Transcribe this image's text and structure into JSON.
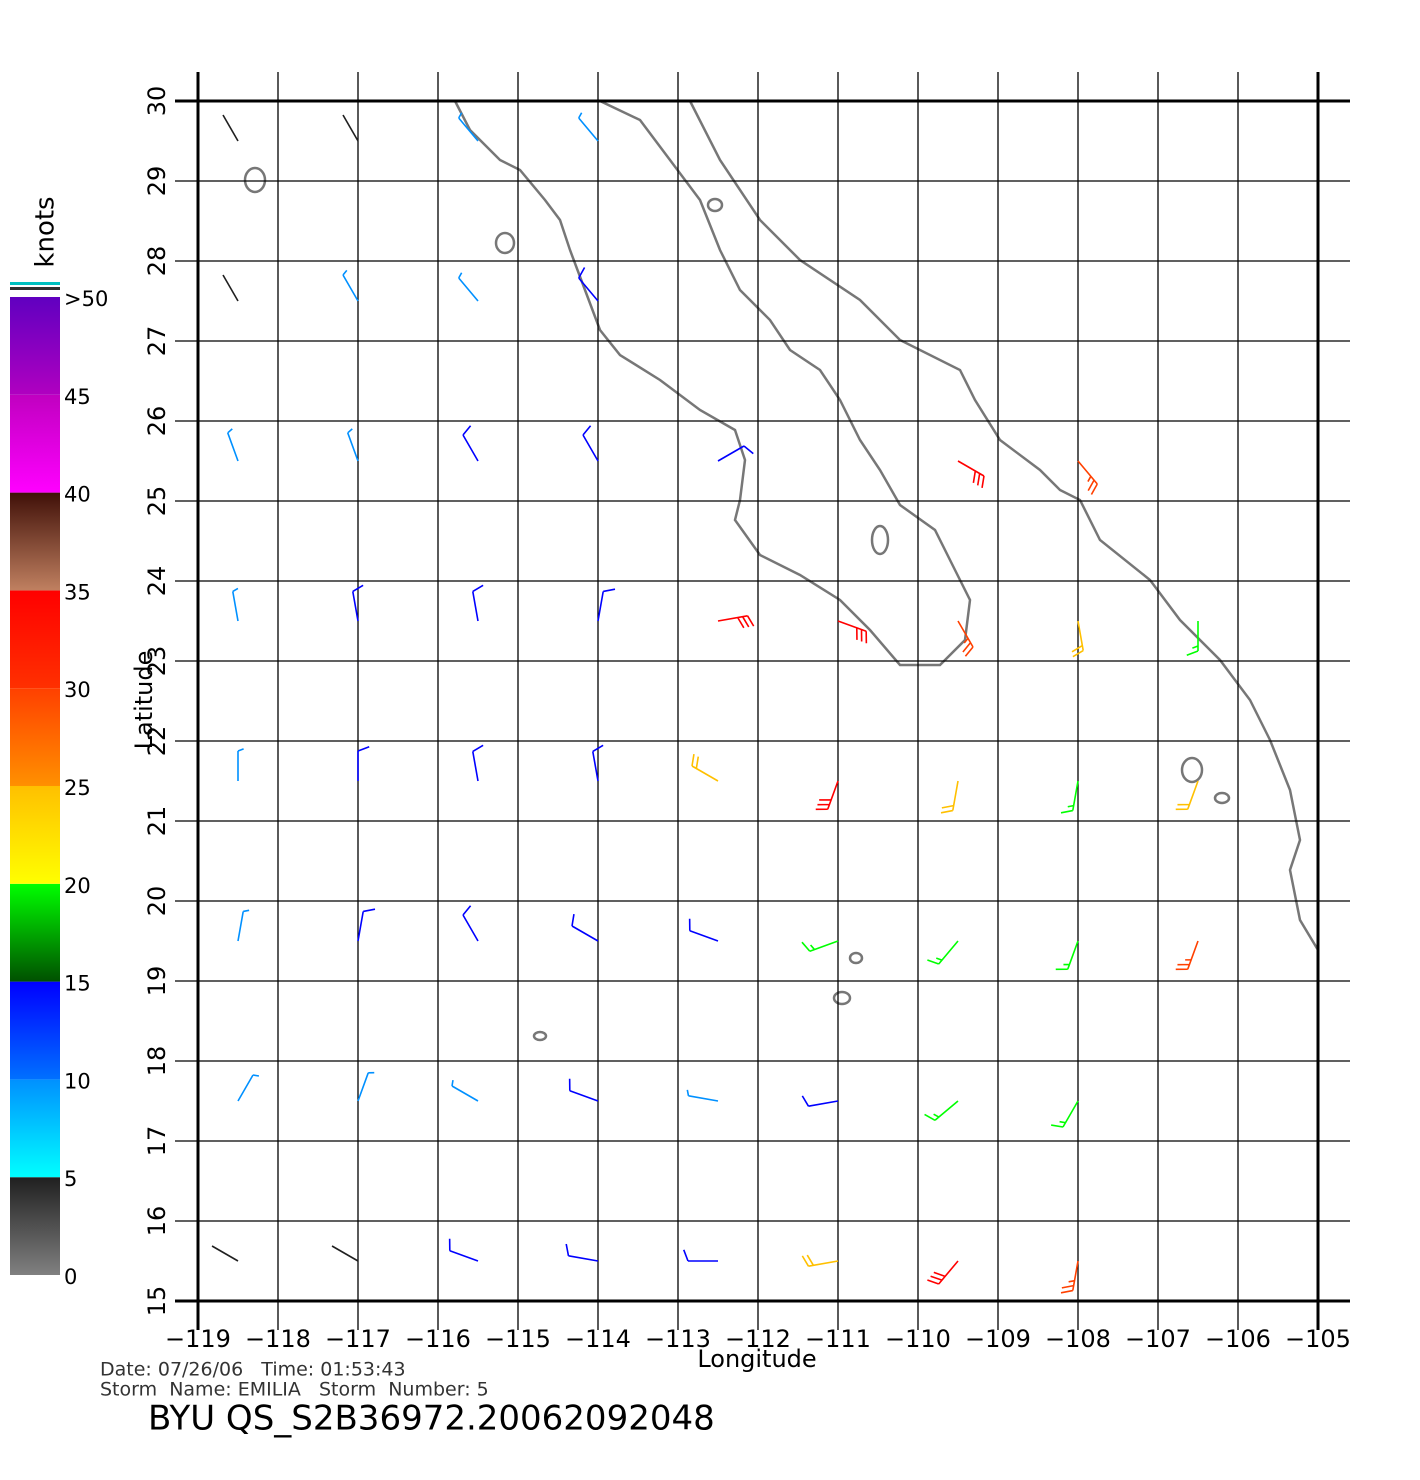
{
  "chart_data": {
    "type": "wind-barb-map",
    "x_label": "Longitude",
    "y_label": "Latitude",
    "xlim": [
      -119,
      -105
    ],
    "ylim": [
      15,
      30
    ],
    "xticks": [
      {
        "value": -119,
        "label": "−119"
      },
      {
        "value": -118,
        "label": "−118"
      },
      {
        "value": -117,
        "label": "−117"
      },
      {
        "value": -116,
        "label": "−116"
      },
      {
        "value": -115,
        "label": "−115"
      },
      {
        "value": -114,
        "label": "−114"
      },
      {
        "value": -113,
        "label": "−113"
      },
      {
        "value": -112,
        "label": "−112"
      },
      {
        "value": -111,
        "label": "−111"
      },
      {
        "value": -110,
        "label": "−110"
      },
      {
        "value": -109,
        "label": "−109"
      },
      {
        "value": -108,
        "label": "−108"
      },
      {
        "value": -107,
        "label": "−107"
      },
      {
        "value": -106,
        "label": "−106"
      },
      {
        "value": -105,
        "label": "−105"
      }
    ],
    "yticks": [
      15,
      16,
      17,
      18,
      19,
      20,
      21,
      22,
      23,
      24,
      25,
      26,
      27,
      28,
      29,
      30
    ],
    "grid": true,
    "colorbar": {
      "label": "knots",
      "ticks": [
        0,
        5,
        10,
        15,
        20,
        25,
        30,
        35,
        40,
        45,
        {
          "value": 50,
          "label": ">50"
        }
      ],
      "colors": [
        [
          "#808080",
          "#202020"
        ],
        [
          "#00ffff",
          "#0090ff"
        ],
        [
          "#0070ff",
          "#0000ff"
        ],
        [
          "#005000",
          "#00ff00"
        ],
        [
          "#ffff00",
          "#ffc000"
        ],
        [
          "#ff9000",
          "#ff4000"
        ],
        [
          "#ff3000",
          "#ff0000"
        ],
        [
          "#c08060",
          "#401008"
        ],
        [
          "#ff00ff",
          "#c000c0"
        ],
        [
          "#b000c0",
          "#6000c0"
        ]
      ]
    },
    "barbs": {
      "x": [
        -118.5,
        -117,
        -115.5,
        -114,
        -118.5,
        -117,
        -115.5,
        -114,
        -118.5,
        -117,
        -115.5,
        -114,
        -112.5,
        -109.5,
        -108,
        -118.5,
        -117,
        -115.5,
        -114,
        -112.5,
        -111,
        -109.5,
        -108,
        -106.5,
        -118.5,
        -117,
        -115.5,
        -114,
        -112.5,
        -111,
        -109.5,
        -108,
        -106.5,
        -118.5,
        -117,
        -115.5,
        -114,
        -112.5,
        -111,
        -109.5,
        -108,
        -106.5,
        -118.5,
        -117,
        -115.5,
        -114,
        -112.5,
        -111,
        -109.5,
        -108,
        -118.5,
        -117,
        -115.5,
        -114,
        -112.5,
        -111,
        -109.5,
        -108
      ],
      "y": [
        29.5,
        29.5,
        29.5,
        29.5,
        27.5,
        27.5,
        27.5,
        27.5,
        25.5,
        25.5,
        25.5,
        25.5,
        25.5,
        25.5,
        25.5,
        23.5,
        23.5,
        23.5,
        23.5,
        23.5,
        23.5,
        23.5,
        23.5,
        23.5,
        21.5,
        21.5,
        21.5,
        21.5,
        21.5,
        21.5,
        21.5,
        21.5,
        21.5,
        19.5,
        19.5,
        19.5,
        19.5,
        19.5,
        19.5,
        19.5,
        19.5,
        19.5,
        17.5,
        17.5,
        17.5,
        17.5,
        17.5,
        17.5,
        17.5,
        17.5,
        15.5,
        15.5,
        15.5,
        15.5,
        15.5,
        15.5,
        15.5,
        15.5
      ],
      "values": [
        3,
        4,
        8,
        9,
        4,
        6,
        9,
        10,
        8,
        9,
        11,
        12,
        12,
        30,
        27,
        9,
        11,
        12,
        13,
        30,
        33,
        25,
        22,
        18,
        8,
        10,
        12,
        13,
        22,
        32,
        24,
        18,
        20,
        8,
        10,
        12,
        13,
        14,
        15,
        17,
        18,
        28,
        7,
        8,
        9,
        10,
        8,
        13,
        15,
        18,
        4,
        4,
        10,
        12,
        13,
        24,
        33,
        28
      ],
      "direction": [
        330,
        330,
        320,
        320,
        330,
        330,
        320,
        320,
        340,
        340,
        330,
        330,
        60,
        120,
        140,
        350,
        350,
        350,
        10,
        80,
        110,
        150,
        170,
        180,
        0,
        0,
        350,
        350,
        300,
        200,
        190,
        190,
        200,
        10,
        10,
        330,
        300,
        290,
        250,
        220,
        200,
        200,
        30,
        20,
        300,
        290,
        280,
        260,
        230,
        210,
        300,
        300,
        290,
        280,
        270,
        260,
        220,
        190
      ]
    },
    "footer": {
      "line1": "Date: 07/26/06   Time: 01:53:43",
      "line2": "Storm  Name: EMILIA   Storm  Number: 5",
      "title": "BYU  QS_S2B36972.20062092048"
    }
  }
}
